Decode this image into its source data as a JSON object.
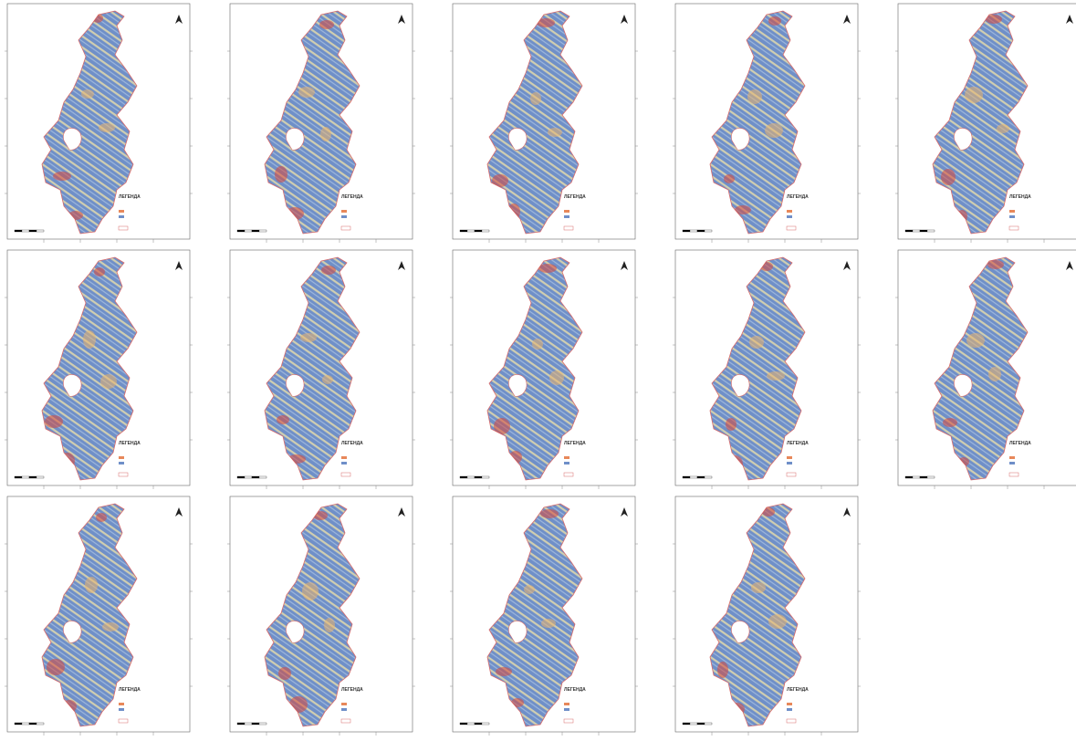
{
  "maps": [
    {
      "legend_title": "ЛЕГЕНДА"
    },
    {
      "legend_title": "ЛЕГЕНДА"
    },
    {
      "legend_title": "ЛЕГЕНДА"
    },
    {
      "legend_title": "ЛЕГЕНДА"
    },
    {
      "legend_title": "ЛЕГЕНДА"
    },
    {
      "legend_title": "ЛЕГЕНДА"
    },
    {
      "legend_title": "ЛЕГЕНДА"
    },
    {
      "legend_title": "ЛЕГЕНДА"
    },
    {
      "legend_title": "ЛЕГЕНДА"
    },
    {
      "legend_title": "ЛЕГЕНДА"
    },
    {
      "legend_title": "ЛЕГЕНДА"
    },
    {
      "legend_title": "ЛЕГЕНДА"
    },
    {
      "legend_title": "ЛЕГЕНДА"
    },
    {
      "legend_title": "ЛЕГЕНДА"
    }
  ]
}
